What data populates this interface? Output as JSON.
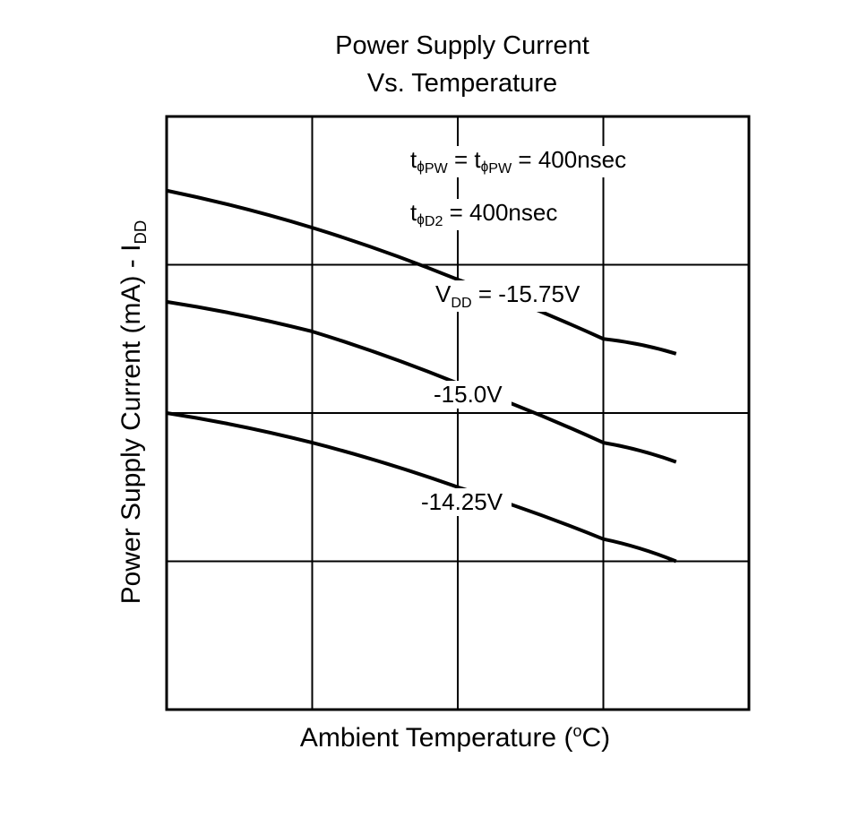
{
  "chart_data": {
    "type": "line",
    "title_line1": "Power Supply Current",
    "title_line2": "Vs. Temperature",
    "xlabel_main": "Ambient Temperature (",
    "xlabel_sup": "o",
    "xlabel_tail": "C)",
    "ylabel_main": "Power Supply Current (mA) - I",
    "ylabel_sub": "DD",
    "grid": true,
    "legend_position": "inline labels",
    "conditions": {
      "line1": {
        "t1": "t",
        "sub1": "PW",
        "mid": "= t",
        "sub2": "PW",
        "value": "= 400nsec"
      },
      "line2": {
        "t": "t",
        "sub": "D2",
        "value": "= 400nsec"
      }
    },
    "series": [
      {
        "name": "V_DD = -15.75V",
        "label_main": "V",
        "label_sub": "DD",
        "label_tail": " = -15.75V",
        "x": [
          0,
          1,
          2,
          3,
          3.5
        ],
        "y": [
          3.1,
          2.85,
          2.5,
          2.1,
          2.0
        ]
      },
      {
        "name": "-15.0V",
        "label_main": "-15.0V",
        "x": [
          0,
          1,
          2,
          3,
          3.5
        ],
        "y": [
          2.35,
          2.15,
          1.8,
          1.4,
          1.27
        ]
      },
      {
        "name": "-14.25V",
        "label_main": "-14.25V",
        "x": [
          0,
          1,
          2,
          3,
          3.5
        ],
        "y": [
          1.6,
          1.4,
          1.1,
          0.75,
          0.6
        ]
      }
    ],
    "xlim": [
      0,
      4
    ],
    "ylim": [
      -0.4,
      3.6
    ]
  }
}
